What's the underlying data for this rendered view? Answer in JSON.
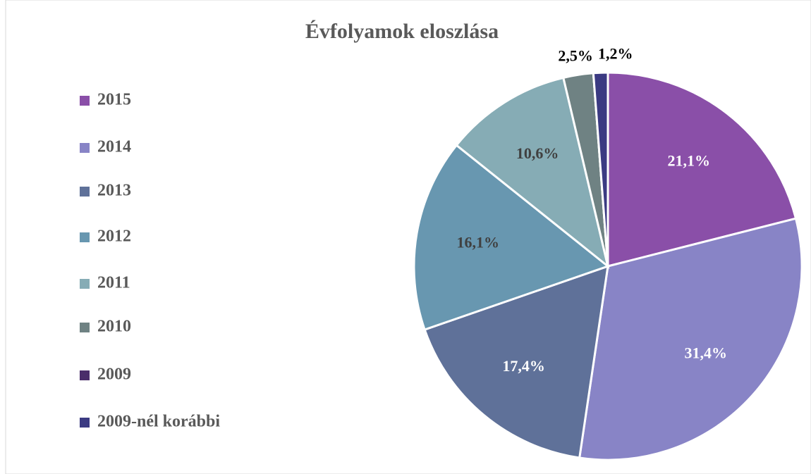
{
  "chart_data": {
    "type": "pie",
    "title": "Évfolyamok eloszlása",
    "categories": [
      "2015",
      "2014",
      "2013",
      "2012",
      "2011",
      "2010",
      "2009",
      "2009-nél korábbi"
    ],
    "values": [
      21.1,
      31.4,
      17.4,
      16.1,
      10.6,
      2.5,
      0,
      1.2
    ],
    "value_labels": [
      "21,1%",
      "31,4%",
      "17,4%",
      "16,1%",
      "10,6%",
      "2,5%",
      null,
      "1,2%"
    ],
    "colors": [
      "#8a4fa8",
      "#8884c6",
      "#5f7199",
      "#6897b0",
      "#86acb5",
      "#6f8283",
      "#4a2e6a",
      "#3b3a82"
    ],
    "legend": "left"
  }
}
